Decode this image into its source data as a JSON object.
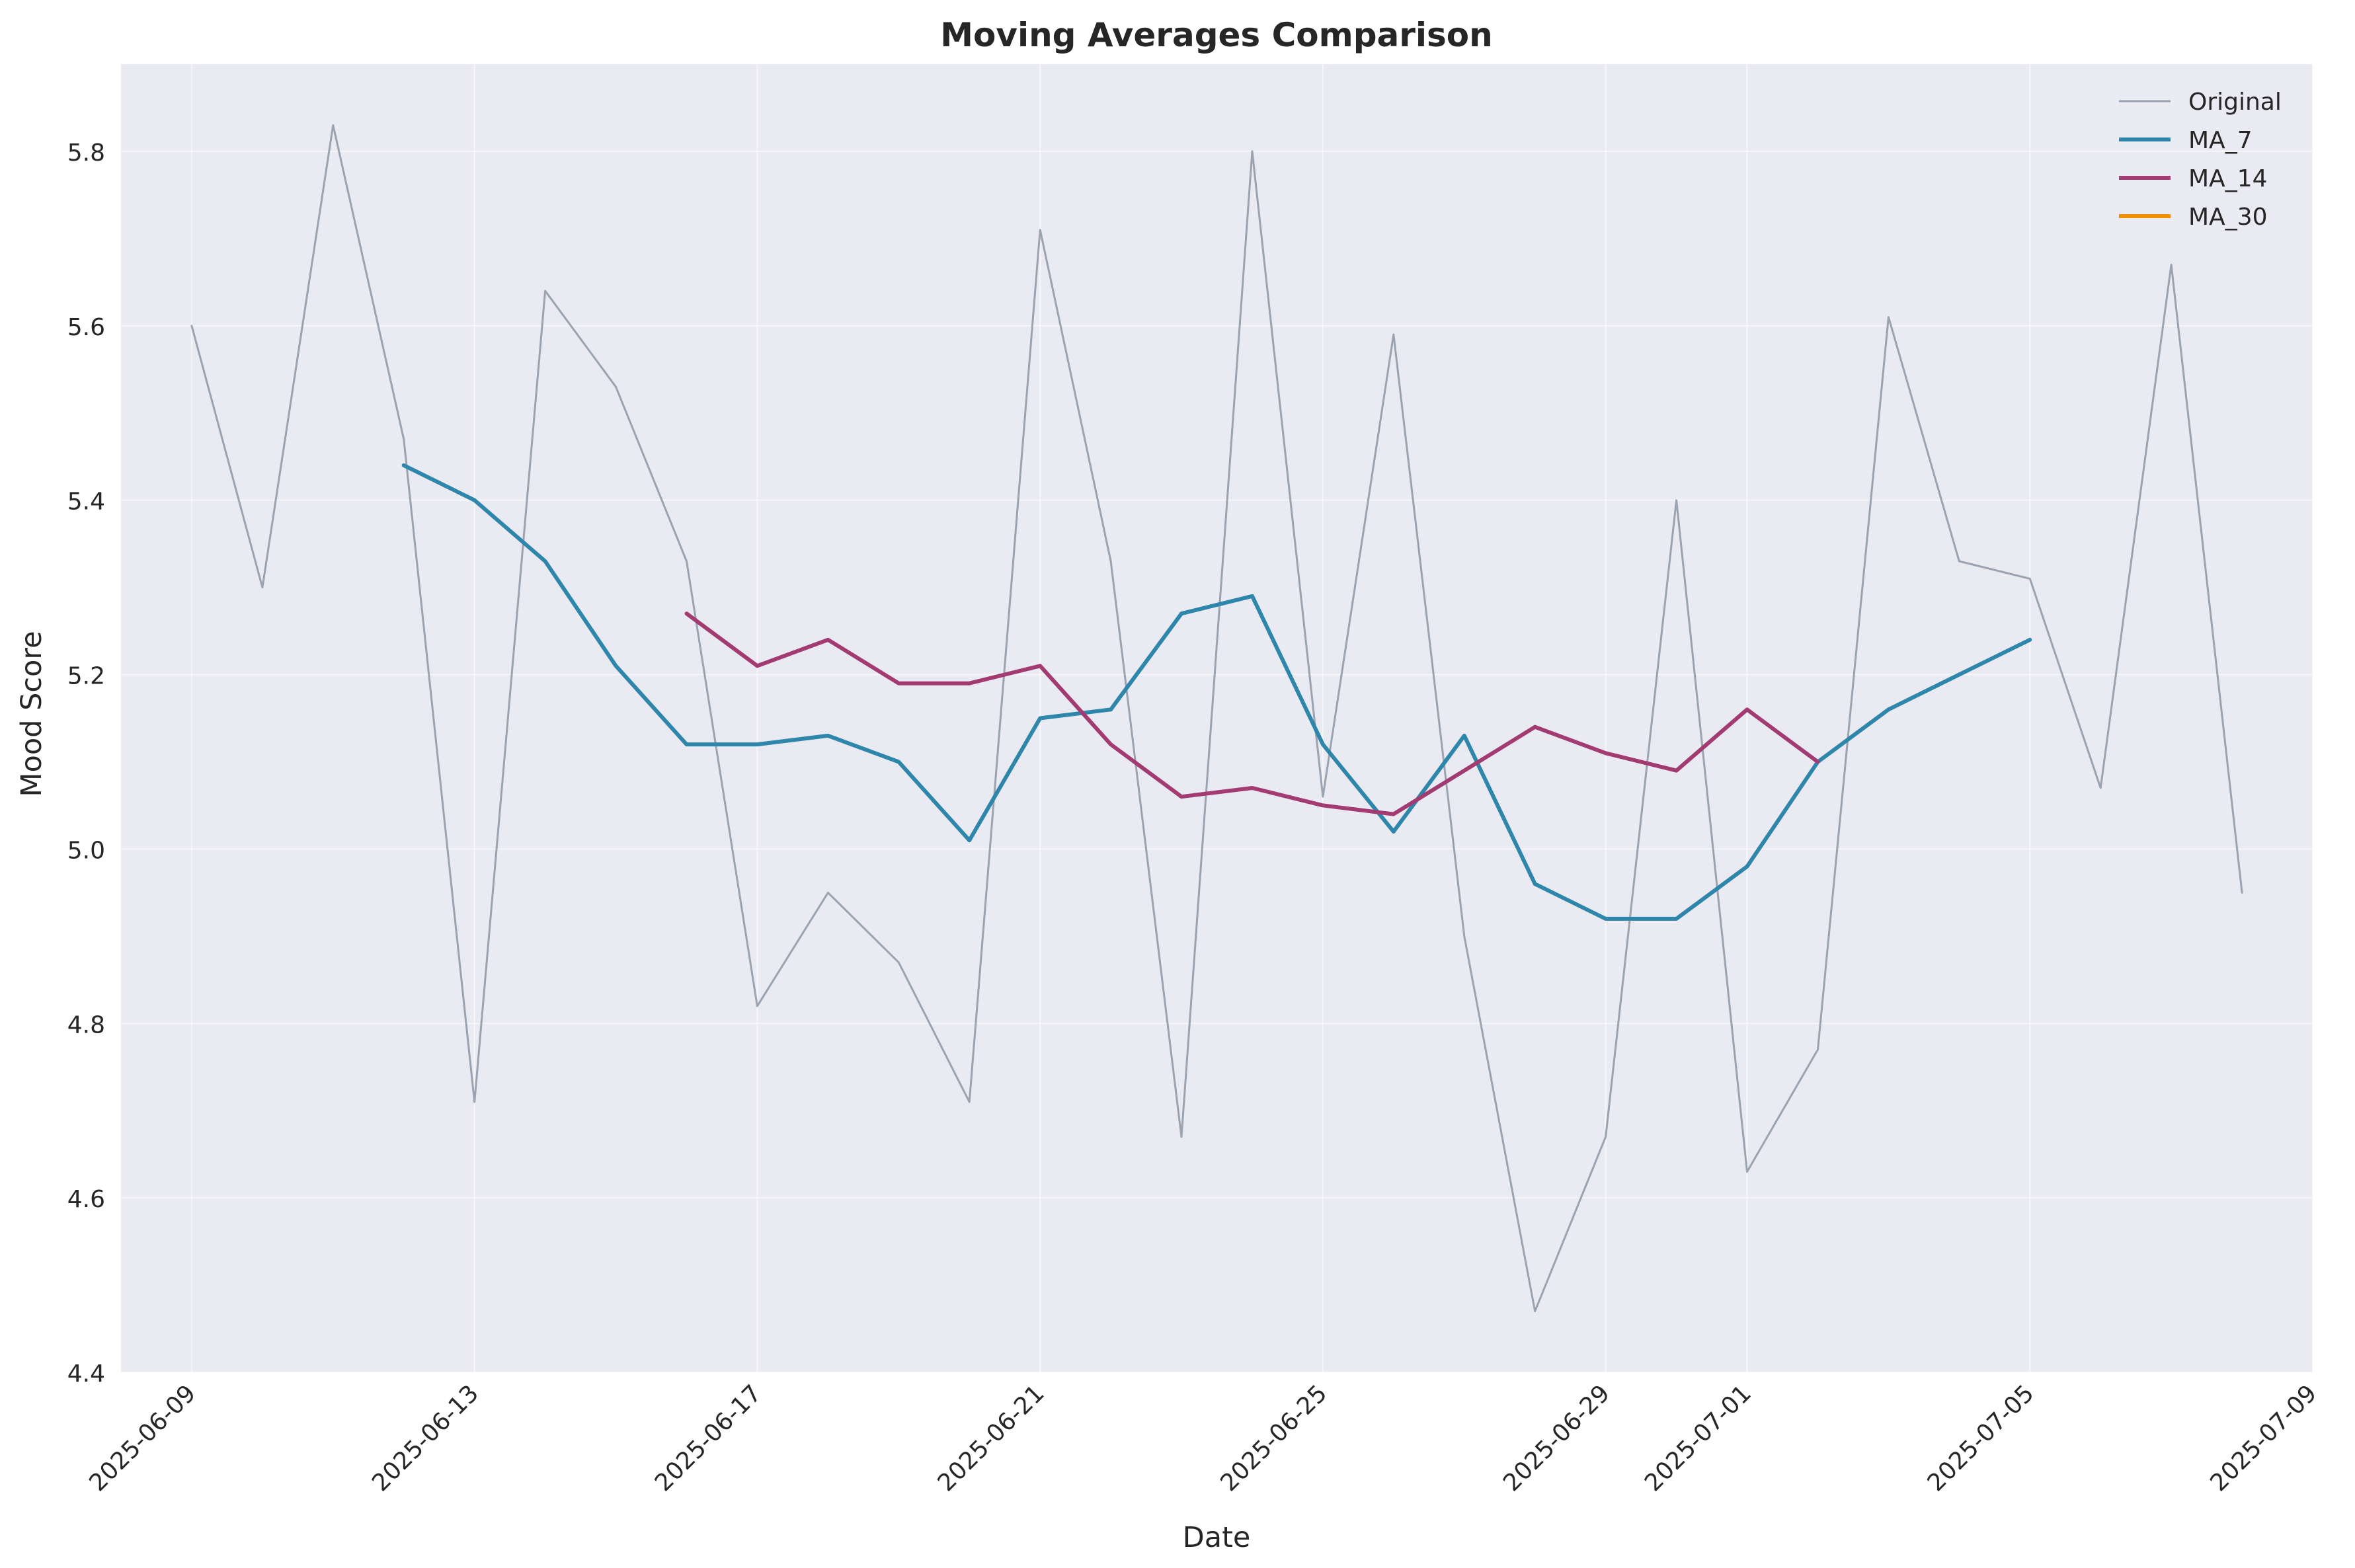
{
  "chart_data": {
    "type": "line",
    "title": "Moving Averages Comparison",
    "xlabel": "Date",
    "ylabel": "Mood Score",
    "x_axis_type": "date",
    "xlim": [
      "2025-06-08",
      "2025-07-09"
    ],
    "ylim": [
      4.4,
      5.9
    ],
    "y_ticks": [
      4.4,
      4.6,
      4.8,
      5.0,
      5.2,
      5.4,
      5.6,
      5.8
    ],
    "x_ticks": [
      "2025-06-09",
      "2025-06-13",
      "2025-06-17",
      "2025-06-21",
      "2025-06-25",
      "2025-06-29",
      "2025-07-01",
      "2025-07-05",
      "2025-07-09"
    ],
    "grid": true,
    "background_color": "#eaeaf2",
    "legend_position": "top-right",
    "series": [
      {
        "name": "Original",
        "color": "#8c96a3",
        "style": "thin",
        "points": [
          {
            "x": "2025-06-09",
            "y": 5.6
          },
          {
            "x": "2025-06-10",
            "y": 5.3
          },
          {
            "x": "2025-06-11",
            "y": 5.83
          },
          {
            "x": "2025-06-12",
            "y": 5.47
          },
          {
            "x": "2025-06-13",
            "y": 4.71
          },
          {
            "x": "2025-06-14",
            "y": 5.64
          },
          {
            "x": "2025-06-15",
            "y": 5.53
          },
          {
            "x": "2025-06-16",
            "y": 5.33
          },
          {
            "x": "2025-06-17",
            "y": 4.82
          },
          {
            "x": "2025-06-18",
            "y": 4.95
          },
          {
            "x": "2025-06-19",
            "y": 4.87
          },
          {
            "x": "2025-06-20",
            "y": 4.71
          },
          {
            "x": "2025-06-21",
            "y": 5.71
          },
          {
            "x": "2025-06-22",
            "y": 5.33
          },
          {
            "x": "2025-06-23",
            "y": 4.67
          },
          {
            "x": "2025-06-24",
            "y": 5.8
          },
          {
            "x": "2025-06-25",
            "y": 5.06
          },
          {
            "x": "2025-06-26",
            "y": 5.59
          },
          {
            "x": "2025-06-27",
            "y": 4.9
          },
          {
            "x": "2025-06-28",
            "y": 4.47
          },
          {
            "x": "2025-06-29",
            "y": 4.67
          },
          {
            "x": "2025-06-30",
            "y": 5.4
          },
          {
            "x": "2025-07-01",
            "y": 4.63
          },
          {
            "x": "2025-07-02",
            "y": 4.77
          },
          {
            "x": "2025-07-03",
            "y": 5.61
          },
          {
            "x": "2025-07-04",
            "y": 5.33
          },
          {
            "x": "2025-07-05",
            "y": 5.31
          },
          {
            "x": "2025-07-06",
            "y": 5.07
          },
          {
            "x": "2025-07-07",
            "y": 5.67
          },
          {
            "x": "2025-07-08",
            "y": 4.95
          }
        ]
      },
      {
        "name": "MA_7",
        "color": "#2e86ab",
        "style": "thick",
        "points": [
          {
            "x": "2025-06-12",
            "y": 5.44
          },
          {
            "x": "2025-06-13",
            "y": 5.4
          },
          {
            "x": "2025-06-14",
            "y": 5.33
          },
          {
            "x": "2025-06-15",
            "y": 5.21
          },
          {
            "x": "2025-06-16",
            "y": 5.12
          },
          {
            "x": "2025-06-17",
            "y": 5.12
          },
          {
            "x": "2025-06-18",
            "y": 5.13
          },
          {
            "x": "2025-06-19",
            "y": 5.1
          },
          {
            "x": "2025-06-20",
            "y": 5.01
          },
          {
            "x": "2025-06-21",
            "y": 5.15
          },
          {
            "x": "2025-06-22",
            "y": 5.16
          },
          {
            "x": "2025-06-23",
            "y": 5.27
          },
          {
            "x": "2025-06-24",
            "y": 5.29
          },
          {
            "x": "2025-06-25",
            "y": 5.12
          },
          {
            "x": "2025-06-26",
            "y": 5.02
          },
          {
            "x": "2025-06-27",
            "y": 5.13
          },
          {
            "x": "2025-06-28",
            "y": 4.96
          },
          {
            "x": "2025-06-29",
            "y": 4.92
          },
          {
            "x": "2025-06-30",
            "y": 4.92
          },
          {
            "x": "2025-07-01",
            "y": 4.98
          },
          {
            "x": "2025-07-02",
            "y": 5.1
          },
          {
            "x": "2025-07-03",
            "y": 5.16
          },
          {
            "x": "2025-07-04",
            "y": 5.2
          },
          {
            "x": "2025-07-05",
            "y": 5.24
          }
        ]
      },
      {
        "name": "MA_14",
        "color": "#a23b72",
        "style": "thick",
        "points": [
          {
            "x": "2025-06-16",
            "y": 5.27
          },
          {
            "x": "2025-06-17",
            "y": 5.21
          },
          {
            "x": "2025-06-18",
            "y": 5.24
          },
          {
            "x": "2025-06-19",
            "y": 5.19
          },
          {
            "x": "2025-06-20",
            "y": 5.19
          },
          {
            "x": "2025-06-21",
            "y": 5.21
          },
          {
            "x": "2025-06-22",
            "y": 5.12
          },
          {
            "x": "2025-06-23",
            "y": 5.06
          },
          {
            "x": "2025-06-24",
            "y": 5.07
          },
          {
            "x": "2025-06-25",
            "y": 5.05
          },
          {
            "x": "2025-06-26",
            "y": 5.04
          },
          {
            "x": "2025-06-27",
            "y": 5.09
          },
          {
            "x": "2025-06-28",
            "y": 5.14
          },
          {
            "x": "2025-06-29",
            "y": 5.11
          },
          {
            "x": "2025-06-30",
            "y": 5.09
          },
          {
            "x": "2025-07-01",
            "y": 5.16
          },
          {
            "x": "2025-07-02",
            "y": 5.1
          }
        ]
      },
      {
        "name": "MA_30",
        "color": "#f18f01",
        "style": "thick",
        "points": []
      }
    ]
  }
}
